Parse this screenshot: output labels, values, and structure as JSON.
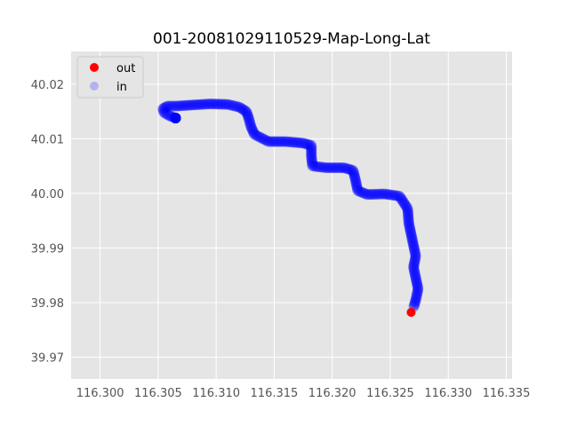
{
  "chart_data": {
    "type": "scatter",
    "title": "001-20081029110529-Map-Long-Lat",
    "xlabel": "",
    "ylabel": "",
    "xlim": [
      116.2975,
      116.3355
    ],
    "ylim": [
      39.966,
      40.026
    ],
    "xticks": [
      "116.300",
      "116.305",
      "116.310",
      "116.315",
      "116.320",
      "116.325",
      "116.330",
      "116.335"
    ],
    "yticks": [
      "39.97",
      "39.98",
      "39.99",
      "40.00",
      "40.01",
      "40.02"
    ],
    "grid": true,
    "legend": "upper-left",
    "series": [
      {
        "name": "out",
        "color": "#ff0000",
        "x": [
          116.3268
        ],
        "y": [
          39.9782
        ]
      },
      {
        "name": "in",
        "color": "#0000ff",
        "legend_color": "#b3b3f0",
        "x": [
          116.3065,
          116.306,
          116.3055,
          116.3054,
          116.3058,
          116.3066,
          116.308,
          116.3095,
          116.311,
          116.312,
          116.3126,
          116.3128,
          116.313,
          116.3133,
          116.3145,
          116.316,
          116.3175,
          116.3182,
          116.3182,
          116.3183,
          116.3195,
          116.321,
          116.3218,
          116.322,
          116.3222,
          116.323,
          116.3245,
          116.3258,
          116.3265,
          116.3266,
          116.3268,
          116.327,
          116.3272,
          116.327,
          116.3272,
          116.3274,
          116.3272,
          116.327
        ],
        "y": [
          40.0138,
          40.0142,
          40.0148,
          40.0155,
          40.016,
          40.016,
          40.0162,
          40.0164,
          40.0163,
          40.0158,
          40.015,
          40.0138,
          40.0122,
          40.0108,
          40.0095,
          40.0095,
          40.0092,
          40.0088,
          40.0068,
          40.005,
          40.0047,
          40.0047,
          40.0042,
          40.0025,
          40.0005,
          39.9998,
          39.9999,
          39.9995,
          39.9972,
          39.9945,
          39.9925,
          39.9905,
          39.9885,
          39.9865,
          39.9845,
          39.9825,
          39.9805,
          39.979
        ]
      }
    ]
  }
}
